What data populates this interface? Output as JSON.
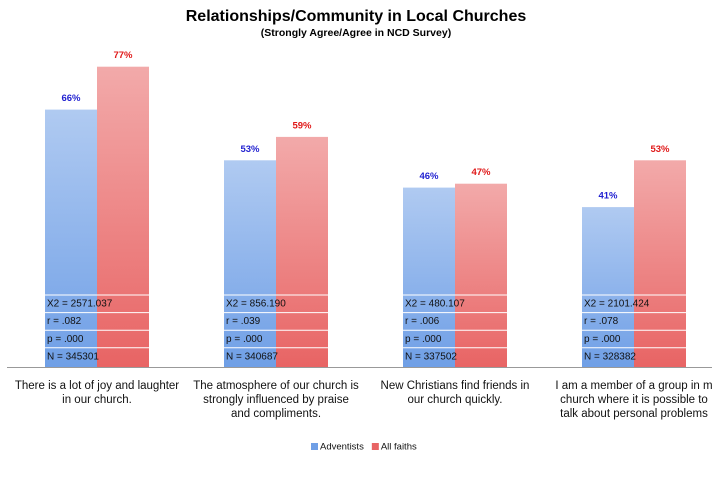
{
  "chart_data": {
    "type": "bar",
    "title": "Relationships/Community in Local Churches",
    "subtitle": "(Strongly Agree/Agree in NCD Survey)",
    "categories": [
      "There is a lot of joy and laughter\nin our church.",
      "The atmosphere of our church is\nstrongly influenced  by praise\nand compliments.",
      "New Christians find friends in\nour church quickly.",
      "I am a member of a group in m\nchurch where it is possible to\ntalk about personal problems"
    ],
    "series": [
      {
        "name": "Adventists",
        "color": "#6f9fe6",
        "label_color": "#1f1fd0",
        "values": [
          66,
          53,
          46,
          41
        ],
        "value_labels": [
          "66%",
          "53%",
          "46%",
          "41%"
        ]
      },
      {
        "name": "All faiths",
        "color": "#e86464",
        "label_color": "#e01818",
        "values": [
          77,
          59,
          47,
          53
        ],
        "value_labels": [
          "77%",
          "59%",
          "47%",
          "53%"
        ]
      }
    ],
    "stats": [
      [
        "X2 = 2571.037",
        "r = .082",
        "p = .000",
        "N = 345301"
      ],
      [
        "X2 = 856.190",
        "r = .039",
        "p = .000",
        "N = 340687"
      ],
      [
        "X2 = 480.107",
        "r = .006",
        "p = .000",
        "N = 337502"
      ],
      [
        "X2 = 2101.424",
        "r = .078",
        "p = .000",
        "N = 328382"
      ]
    ],
    "ylim": [
      0,
      80
    ]
  }
}
